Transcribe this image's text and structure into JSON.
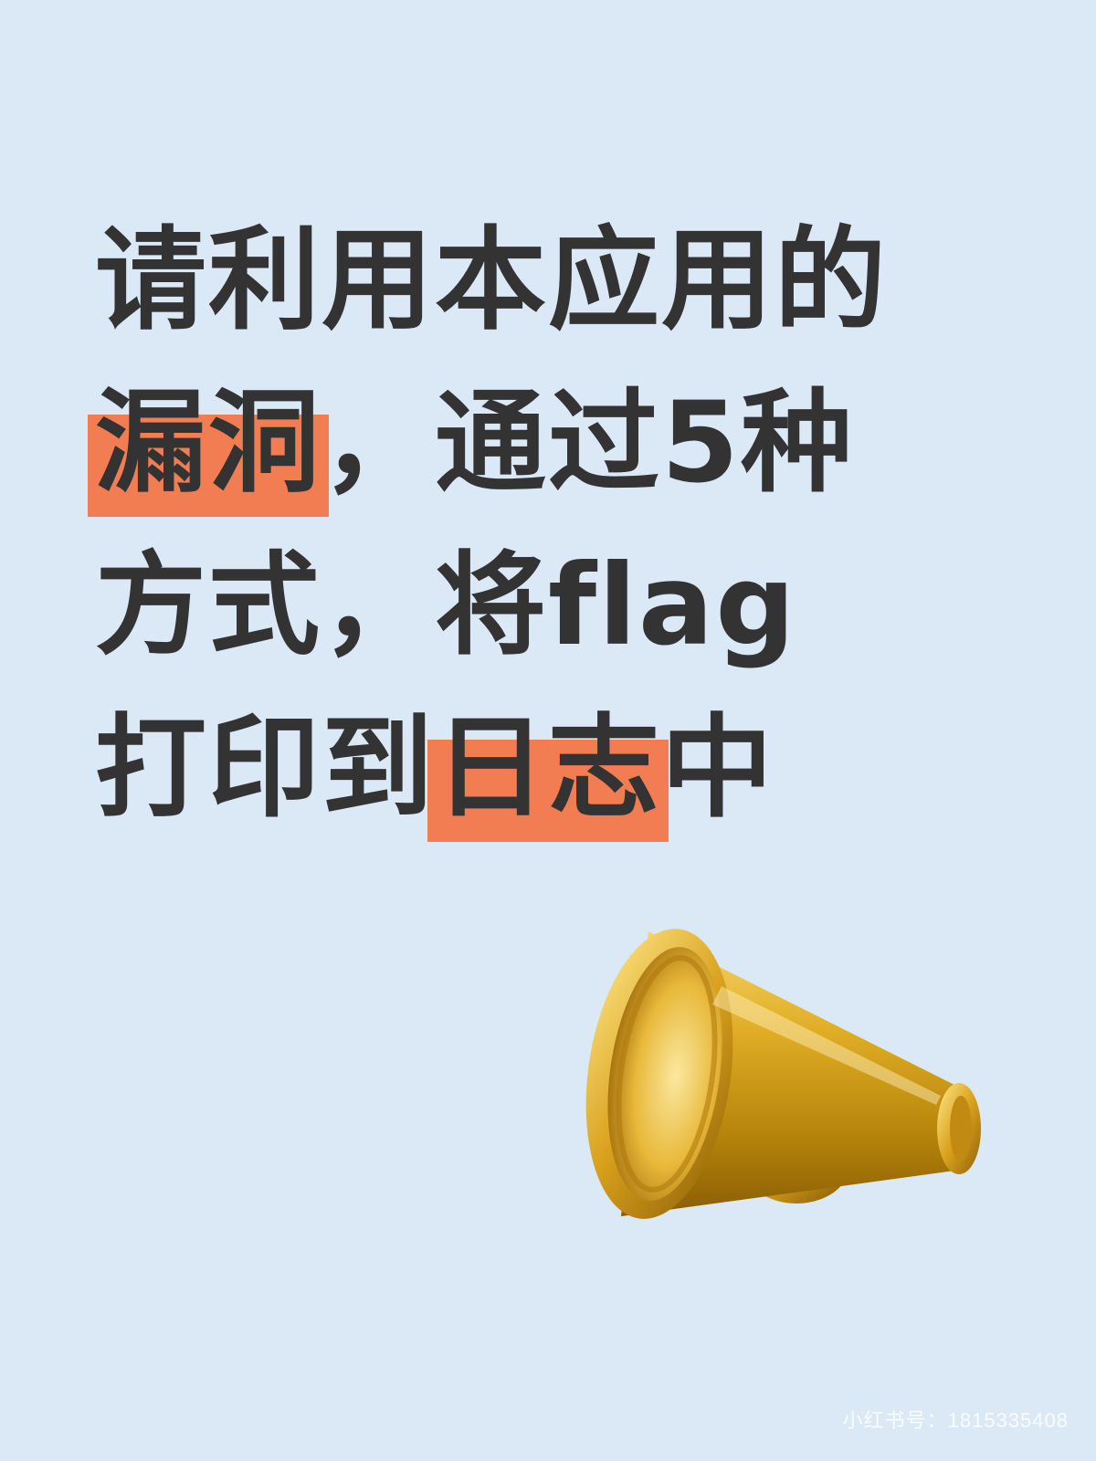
{
  "headline": {
    "line1": "请利用本应用的",
    "line2_highlight": "漏洞",
    "line2_rest": "，通过5种",
    "line3": "方式，将flag",
    "line4_before": "打印到",
    "line4_highlight": "日志",
    "line4_after": "中"
  },
  "watermark": "小红书号：1815335408",
  "colors": {
    "background": "#dbe8f6",
    "text": "#333333",
    "highlight": "#f27d52",
    "megaphone_gold": "#d4a017"
  },
  "icon": "megaphone-icon"
}
